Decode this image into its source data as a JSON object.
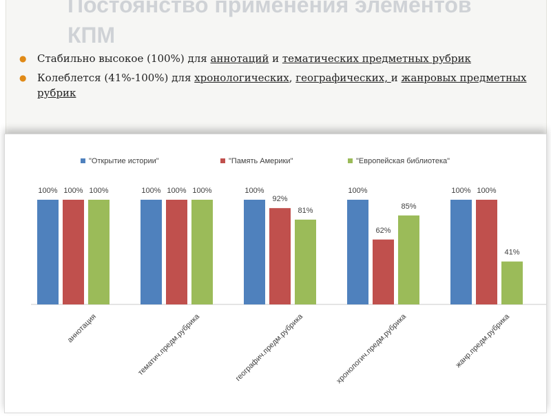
{
  "slide": {
    "title_line1": "Постоянство применения элементов",
    "title_line2": "КПМ"
  },
  "bullets": [
    {
      "parts": [
        {
          "text": "Стабильно высокое (100%) для ",
          "u": false
        },
        {
          "text": "аннотаций",
          "u": true
        },
        {
          "text": " и ",
          "u": false
        },
        {
          "text": "тематических предметных рубрик",
          "u": true
        }
      ]
    },
    {
      "parts": [
        {
          "text": "Колеблется (41%-100%) для ",
          "u": false
        },
        {
          "text": "хронологических",
          "u": true
        },
        {
          "text": ", ",
          "u": false
        },
        {
          "text": "географических, ",
          "u": true
        },
        {
          "text": "и ",
          "u": false
        },
        {
          "text": "жанровых предметных рубрик",
          "u": true
        }
      ]
    }
  ],
  "colors": {
    "bullet": "#e08a17",
    "series": [
      "#4f81bd",
      "#c0504d",
      "#9bbb59"
    ]
  },
  "chart_data": {
    "type": "bar",
    "categories": [
      "аннотация",
      "тематич.предм.рубрика",
      "географич.предм.рубрика",
      "хронологич.предм.рубрика",
      "жанр.предм.рубрика"
    ],
    "series": [
      {
        "name": "\"Открытие истории\"",
        "values": [
          100,
          100,
          100,
          100,
          100
        ]
      },
      {
        "name": "\"Память Америки\"",
        "values": [
          100,
          100,
          92,
          62,
          100
        ]
      },
      {
        "name": "\"Европейская библиотека\"",
        "values": [
          100,
          100,
          81,
          85,
          41
        ]
      }
    ],
    "value_suffix": "%",
    "ylim": [
      0,
      100
    ],
    "grid": false,
    "legend_position": "top",
    "xlabel": "",
    "ylabel": ""
  }
}
